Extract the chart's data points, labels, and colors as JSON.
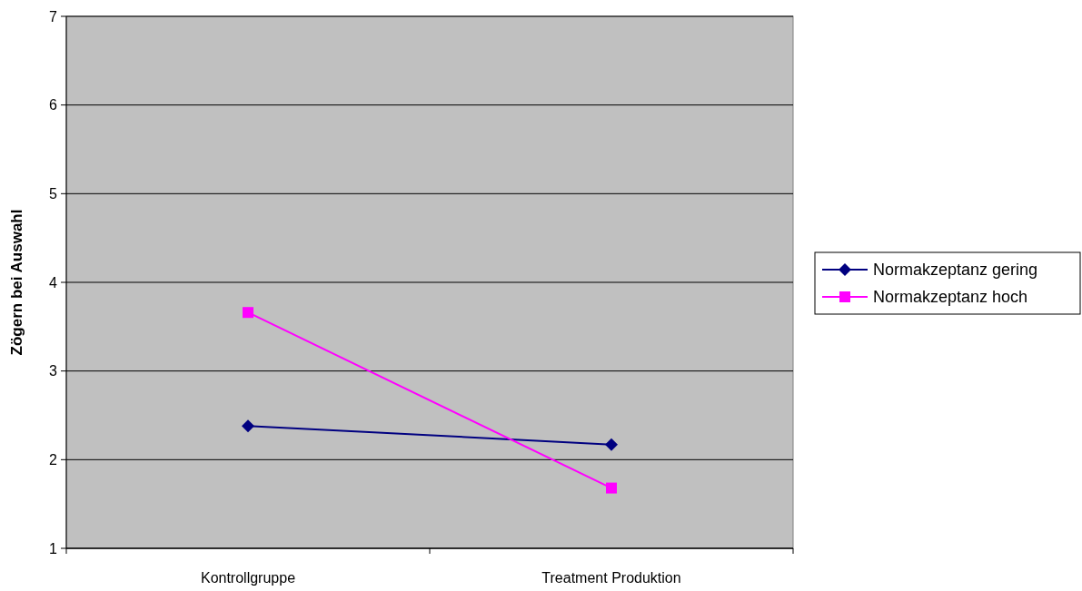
{
  "chart_data": {
    "type": "line",
    "ylabel": "Zögern bei Auswahl",
    "categories": [
      "Kontrollgruppe",
      "Treatment Produktion"
    ],
    "series": [
      {
        "name": "Normakzeptanz gering",
        "color": "#000080",
        "marker": "diamond",
        "values": [
          2.38,
          2.17
        ]
      },
      {
        "name": "Normakzeptanz hoch",
        "color": "#ff00ff",
        "marker": "square",
        "values": [
          3.66,
          1.68
        ]
      }
    ],
    "ylim": [
      1,
      7
    ],
    "yticks": [
      1,
      2,
      3,
      4,
      5,
      6,
      7
    ],
    "grid": "y",
    "legend": "right"
  }
}
